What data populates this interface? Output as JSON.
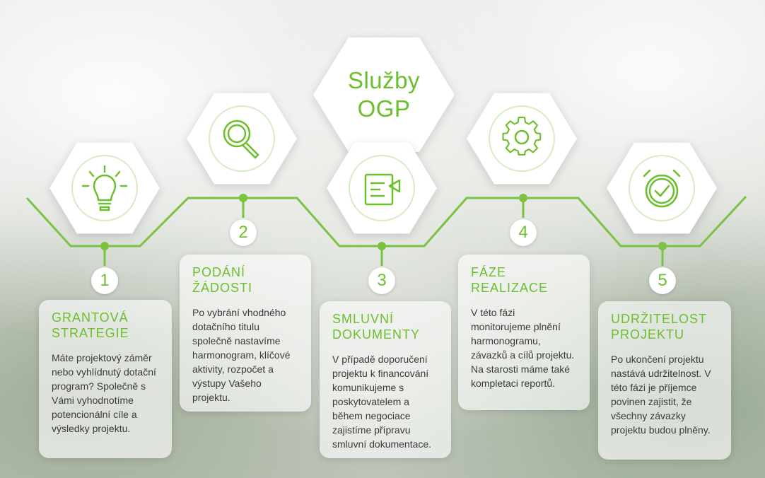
{
  "title": {
    "line1": "Služby",
    "line2": "OGP"
  },
  "colors": {
    "accent": "#6cbf2c",
    "text": "#3a3a3a"
  },
  "steps": [
    {
      "number": "1",
      "icon": "lightbulb-icon",
      "title_line1": "GRANTOVÁ",
      "title_line2": "STRATEGIE",
      "text": "Máte projektový záměr nebo vyhlídnutý dotační program? Společně s Vámi vyhodnotíme potencionální cíle a výsledky projektu."
    },
    {
      "number": "2",
      "icon": "magnifier-icon",
      "title_line1": "PODÁNÍ",
      "title_line2": "ŽÁDOSTI",
      "text": "Po vybrání vhodného dotačního titulu společně nastavíme harmonogram, klíčové aktivity, rozpočet a výstupy Vašeho projektu."
    },
    {
      "number": "3",
      "icon": "document-flag-icon",
      "title_line1": "SMLUVNÍ",
      "title_line2": "DOKUMENTY",
      "text": "V případě doporučení projektu k financování komunikujeme s poskytovatelem a během negociace zajistíme přípravu smluvní dokumentace."
    },
    {
      "number": "4",
      "icon": "gear-icon",
      "title_line1": "FÁZE",
      "title_line2": "REALIZACE",
      "text": "V této fázi monitorujeme plnění harmonogramu, závazků a cílů projektu. Na starosti máme také kompletaci reportů."
    },
    {
      "number": "5",
      "icon": "stopwatch-check-icon",
      "title_line1": "UDRŽITELOST",
      "title_line2": "PROJEKTU",
      "text": "Po ukončení projektu nastává udržitelnost. V této fázi je příjemce povinen zajistit, že všechny závazky projektu budou plněny."
    }
  ]
}
